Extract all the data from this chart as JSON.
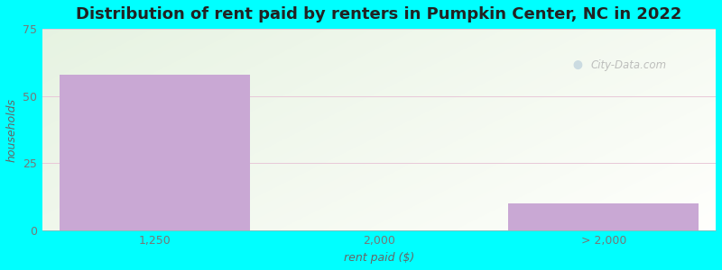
{
  "title": "Distribution of rent paid by renters in Pumpkin Center, NC in 2022",
  "categories": [
    "1,250",
    "2,000",
    "> 2,000"
  ],
  "values": [
    58,
    0,
    10
  ],
  "bar_color": "#c9a8d4",
  "bar_edge_color": "#b8a0c8",
  "background_color": "#00ffff",
  "plot_bg_left": "#d4edda",
  "plot_bg_right": "#f0faf0",
  "xlabel": "rent paid ($)",
  "ylabel": "households",
  "ylim": [
    0,
    75
  ],
  "yticks": [
    0,
    25,
    50,
    75
  ],
  "title_fontsize": 13,
  "axis_label_fontsize": 9,
  "tick_fontsize": 9,
  "watermark": "City-Data.com",
  "bar_width": 0.85,
  "tick_color": "#777777",
  "label_color": "#666666"
}
